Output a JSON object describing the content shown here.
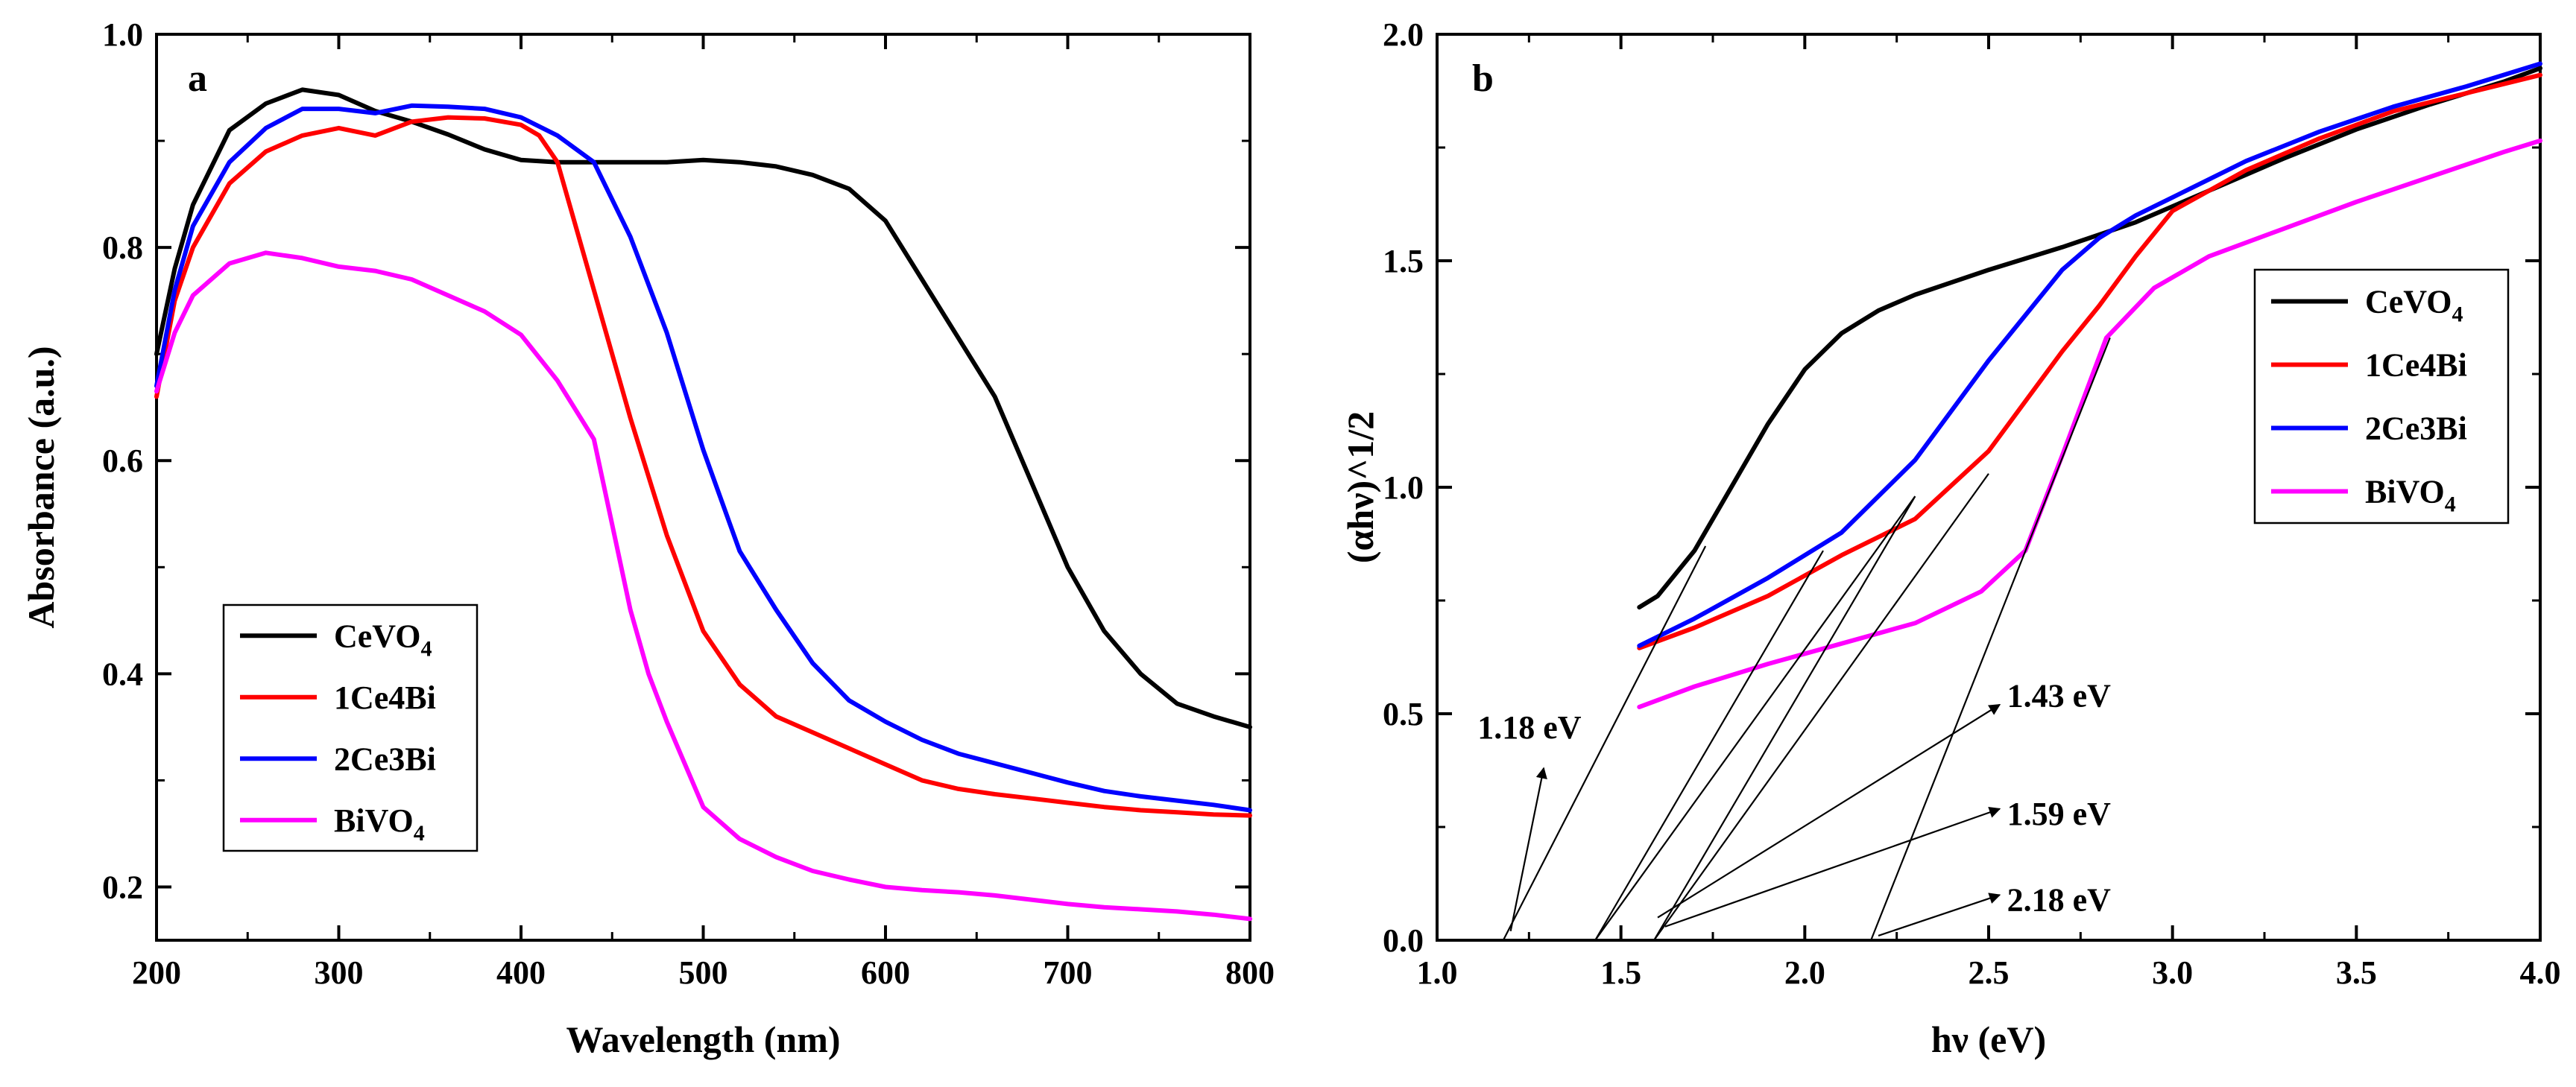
{
  "chart_data": [
    {
      "type": "line",
      "panel_label": "a",
      "xlabel": "Wavelength (nm)",
      "ylabel": "Absorbance (a.u.)",
      "xlim": [
        200,
        800
      ],
      "ylim": [
        0.15,
        1.0
      ],
      "xticks": [
        200,
        300,
        400,
        500,
        600,
        700,
        800
      ],
      "yticks": [
        0.2,
        0.4,
        0.6,
        0.8,
        1.0
      ],
      "xtick_labels": [
        "200",
        "300",
        "400",
        "500",
        "600",
        "700",
        "800"
      ],
      "ytick_labels": [
        "0.2",
        "0.4",
        "0.6",
        "0.8",
        "1.0"
      ],
      "legend_position": "bottom-left",
      "legend": [
        {
          "base": "CeVO",
          "sub": "4",
          "color": "#000000"
        },
        {
          "base": "1Ce4Bi",
          "sub": "",
          "color": "#ff0000"
        },
        {
          "base": "2Ce3Bi",
          "sub": "",
          "color": "#0000ff"
        },
        {
          "base": "BiVO",
          "sub": "4",
          "color": "#ff00ff"
        }
      ],
      "series": [
        {
          "name": "CeVO4",
          "color": "#000000",
          "x": [
            200,
            210,
            220,
            240,
            260,
            280,
            300,
            320,
            340,
            360,
            380,
            400,
            420,
            440,
            460,
            480,
            500,
            520,
            540,
            560,
            580,
            600,
            620,
            640,
            660,
            680,
            700,
            720,
            740,
            760,
            780,
            800
          ],
          "y": [
            0.7,
            0.78,
            0.84,
            0.91,
            0.935,
            0.948,
            0.943,
            0.928,
            0.918,
            0.906,
            0.892,
            0.882,
            0.88,
            0.88,
            0.88,
            0.88,
            0.882,
            0.88,
            0.876,
            0.868,
            0.855,
            0.825,
            0.77,
            0.715,
            0.66,
            0.58,
            0.5,
            0.44,
            0.4,
            0.372,
            0.36,
            0.35
          ]
        },
        {
          "name": "1Ce4Bi",
          "color": "#ff0000",
          "x": [
            200,
            210,
            220,
            240,
            260,
            280,
            300,
            320,
            340,
            360,
            380,
            400,
            410,
            420,
            440,
            460,
            480,
            500,
            520,
            540,
            560,
            580,
            600,
            620,
            640,
            660,
            680,
            700,
            720,
            740,
            760,
            780,
            800
          ],
          "y": [
            0.66,
            0.75,
            0.8,
            0.86,
            0.89,
            0.905,
            0.912,
            0.905,
            0.918,
            0.922,
            0.921,
            0.915,
            0.905,
            0.88,
            0.76,
            0.64,
            0.53,
            0.44,
            0.39,
            0.36,
            0.345,
            0.33,
            0.315,
            0.3,
            0.292,
            0.287,
            0.283,
            0.279,
            0.275,
            0.272,
            0.27,
            0.268,
            0.267
          ]
        },
        {
          "name": "2Ce3Bi",
          "color": "#0000ff",
          "x": [
            200,
            210,
            220,
            240,
            260,
            280,
            300,
            320,
            340,
            360,
            380,
            400,
            420,
            440,
            460,
            480,
            500,
            520,
            540,
            560,
            580,
            600,
            620,
            640,
            660,
            680,
            700,
            720,
            740,
            760,
            780,
            800
          ],
          "y": [
            0.67,
            0.76,
            0.82,
            0.88,
            0.912,
            0.93,
            0.93,
            0.926,
            0.933,
            0.932,
            0.93,
            0.922,
            0.905,
            0.88,
            0.81,
            0.72,
            0.61,
            0.515,
            0.46,
            0.41,
            0.375,
            0.355,
            0.338,
            0.325,
            0.316,
            0.307,
            0.298,
            0.29,
            0.285,
            0.281,
            0.277,
            0.272
          ]
        },
        {
          "name": "BiVO4",
          "color": "#ff00ff",
          "x": [
            200,
            210,
            220,
            240,
            260,
            280,
            300,
            320,
            340,
            360,
            380,
            400,
            420,
            440,
            450,
            460,
            470,
            480,
            500,
            520,
            540,
            560,
            580,
            600,
            620,
            640,
            660,
            680,
            700,
            720,
            740,
            760,
            780,
            800
          ],
          "y": [
            0.665,
            0.72,
            0.755,
            0.785,
            0.795,
            0.79,
            0.782,
            0.778,
            0.77,
            0.755,
            0.74,
            0.718,
            0.675,
            0.62,
            0.54,
            0.46,
            0.4,
            0.355,
            0.275,
            0.245,
            0.228,
            0.215,
            0.207,
            0.2,
            0.197,
            0.195,
            0.192,
            0.188,
            0.184,
            0.181,
            0.179,
            0.177,
            0.174,
            0.17
          ]
        }
      ]
    },
    {
      "type": "line",
      "panel_label": "b",
      "xlabel": "hν (eV)",
      "ylabel": "(αhν)^1/2",
      "xlim": [
        1.0,
        4.0
      ],
      "ylim": [
        0.0,
        2.0
      ],
      "xticks": [
        1.0,
        1.5,
        2.0,
        2.5,
        3.0,
        3.5,
        4.0
      ],
      "yticks": [
        0.0,
        0.5,
        1.0,
        1.5,
        2.0
      ],
      "xtick_labels": [
        "1.0",
        "1.5",
        "2.0",
        "2.5",
        "3.0",
        "3.5",
        "4.0"
      ],
      "ytick_labels": [
        "0.0",
        "0.5",
        "1.0",
        "1.5",
        "2.0"
      ],
      "legend_position": "top-right",
      "legend": [
        {
          "base": "CeVO",
          "sub": "4",
          "color": "#000000"
        },
        {
          "base": "1Ce4Bi",
          "sub": "",
          "color": "#ff0000"
        },
        {
          "base": "2Ce3Bi",
          "sub": "",
          "color": "#0000ff"
        },
        {
          "base": "BiVO",
          "sub": "4",
          "color": "#ff00ff"
        }
      ],
      "series": [
        {
          "name": "CeVO4",
          "color": "#000000",
          "x": [
            1.55,
            1.6,
            1.7,
            1.8,
            1.9,
            2.0,
            2.1,
            2.2,
            2.3,
            2.5,
            2.7,
            2.9,
            3.1,
            3.3,
            3.5,
            3.7,
            3.9,
            4.0
          ],
          "y": [
            0.735,
            0.76,
            0.86,
            1.0,
            1.14,
            1.26,
            1.34,
            1.39,
            1.425,
            1.48,
            1.53,
            1.585,
            1.655,
            1.725,
            1.79,
            1.845,
            1.895,
            1.925
          ]
        },
        {
          "name": "1Ce4Bi",
          "color": "#ff0000",
          "x": [
            1.55,
            1.7,
            1.9,
            2.1,
            2.3,
            2.5,
            2.7,
            2.8,
            2.9,
            3.0,
            3.2,
            3.4,
            3.6,
            3.8,
            4.0
          ],
          "y": [
            0.645,
            0.69,
            0.76,
            0.85,
            0.93,
            1.08,
            1.3,
            1.4,
            1.51,
            1.61,
            1.7,
            1.77,
            1.83,
            1.87,
            1.91
          ]
        },
        {
          "name": "2Ce3Bi",
          "color": "#0000ff",
          "x": [
            1.55,
            1.7,
            1.9,
            2.1,
            2.3,
            2.5,
            2.7,
            2.8,
            2.9,
            3.0,
            3.2,
            3.4,
            3.6,
            3.8,
            4.0
          ],
          "y": [
            0.65,
            0.71,
            0.8,
            0.9,
            1.06,
            1.28,
            1.48,
            1.55,
            1.6,
            1.64,
            1.72,
            1.785,
            1.84,
            1.885,
            1.935
          ]
        },
        {
          "name": "BiVO4",
          "color": "#ff00ff",
          "x": [
            1.55,
            1.7,
            1.9,
            2.1,
            2.3,
            2.48,
            2.6,
            2.7,
            2.82,
            2.95,
            3.1,
            3.3,
            3.5,
            3.7,
            3.9,
            4.0
          ],
          "y": [
            0.515,
            0.56,
            0.61,
            0.655,
            0.7,
            0.77,
            0.86,
            1.07,
            1.33,
            1.44,
            1.51,
            1.57,
            1.63,
            1.685,
            1.74,
            1.765
          ]
        }
      ],
      "tangent_lines": [
        {
          "from": [
            1.18,
            0.0
          ],
          "to": [
            1.73,
            0.87
          ]
        },
        {
          "from": [
            1.43,
            0.0
          ],
          "to": [
            2.05,
            0.86
          ]
        },
        {
          "from": [
            1.43,
            0.0
          ],
          "to": [
            2.3,
            0.98
          ]
        },
        {
          "from": [
            1.59,
            0.0
          ],
          "to": [
            2.5,
            1.03
          ]
        },
        {
          "from": [
            1.59,
            0.0
          ],
          "to": [
            2.3,
            0.98
          ]
        },
        {
          "from": [
            2.18,
            0.0
          ],
          "to": [
            2.83,
            1.33
          ]
        }
      ],
      "annotations": [
        {
          "text": "1.18 eV",
          "x": 1.11,
          "y": 0.47,
          "arrow_from": [
            1.2,
            0.02
          ],
          "arrow_to": [
            1.29,
            0.38
          ]
        },
        {
          "text": "1.43 eV",
          "x": 2.55,
          "y": 0.54,
          "arrow_from": [
            1.6,
            0.05
          ],
          "arrow_to": [
            2.53,
            0.52
          ]
        },
        {
          "text": "1.59 eV",
          "x": 2.55,
          "y": 0.28,
          "arrow_from": [
            1.62,
            0.03
          ],
          "arrow_to": [
            2.53,
            0.29
          ]
        },
        {
          "text": "2.18 eV",
          "x": 2.55,
          "y": 0.09,
          "arrow_from": [
            2.2,
            0.01
          ],
          "arrow_to": [
            2.53,
            0.1
          ]
        }
      ]
    }
  ]
}
